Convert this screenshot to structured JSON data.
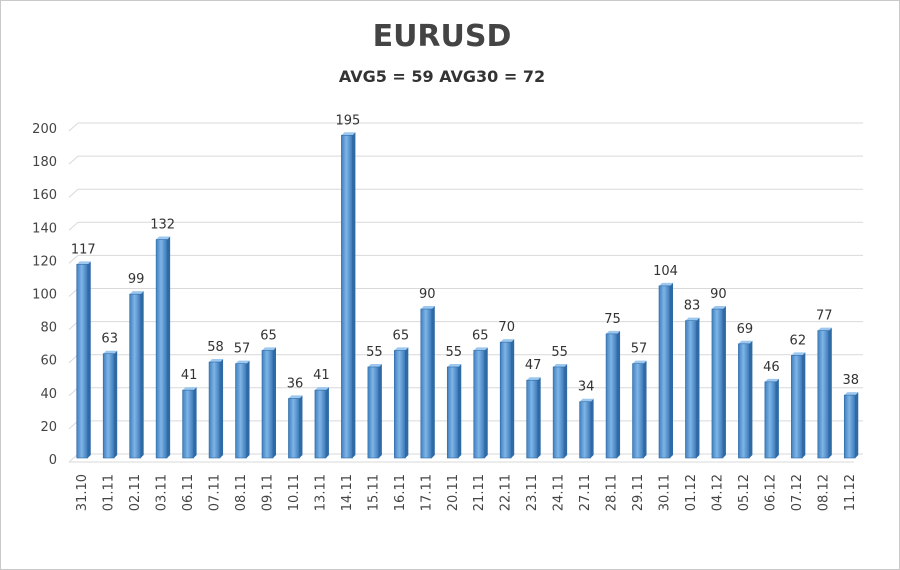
{
  "chart_data": {
    "type": "bar",
    "title": "EURUSD",
    "subtitle": "AVG5 = 59 AVG30 = 72",
    "xlabel": "",
    "ylabel": "",
    "ylim": [
      0,
      200
    ],
    "yticks": [
      "0",
      "20",
      "40",
      "60",
      "80",
      "100",
      "120",
      "140",
      "160",
      "180",
      "200"
    ],
    "grid": true,
    "legend": "none",
    "bar_color": "#5b9bd5",
    "categories": [
      "31.10",
      "01.11",
      "02.11",
      "03.11",
      "06.11",
      "07.11",
      "08.11",
      "09.11",
      "10.11",
      "13.11",
      "14.11",
      "15.11",
      "16.11",
      "17.11",
      "20.11",
      "21.11",
      "22.11",
      "23.11",
      "24.11",
      "27.11",
      "28.11",
      "29.11",
      "30.11",
      "01.12",
      "04.12",
      "05.12",
      "06.12",
      "07.12",
      "08.12",
      "11.12"
    ],
    "values": [
      117,
      63,
      99,
      132,
      41,
      58,
      57,
      65,
      36,
      41,
      195,
      55,
      65,
      90,
      55,
      65,
      70,
      47,
      55,
      34,
      75,
      57,
      104,
      83,
      90,
      69,
      46,
      62,
      77,
      38
    ],
    "data_labels": [
      "117",
      "63",
      "99",
      "132",
      "41",
      "58",
      "57",
      "65",
      "36",
      "41",
      "195",
      "55",
      "65",
      "90",
      "55",
      "65",
      "70",
      "47",
      "55",
      "34",
      "75",
      "57",
      "104",
      "83",
      "90",
      "69",
      "46",
      "62",
      "77",
      "38"
    ]
  }
}
